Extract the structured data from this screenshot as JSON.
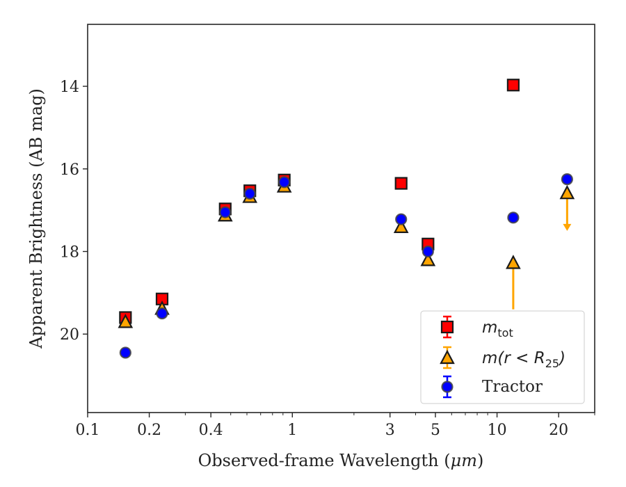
{
  "chart_data": {
    "type": "scatter",
    "xlabel_prefix": "Observed-frame Wavelength (",
    "xlabel_unit": "μm",
    "xlabel_suffix": ")",
    "ylabel": "Apparent Brightness (AB mag)",
    "xscale": "log",
    "xlim": [
      0.1,
      30
    ],
    "ylim": [
      21.9,
      12.5
    ],
    "y_inverted": true,
    "grid": false,
    "legend_position": "lower-right",
    "x_ticks": [
      {
        "value": 0.1,
        "label": "0.1"
      },
      {
        "value": 0.2,
        "label": "0.2"
      },
      {
        "value": 0.4,
        "label": "0.4"
      },
      {
        "value": 1,
        "label": "1"
      },
      {
        "value": 3,
        "label": "3"
      },
      {
        "value": 5,
        "label": "5"
      },
      {
        "value": 10,
        "label": "10"
      },
      {
        "value": 20,
        "label": "20"
      }
    ],
    "y_ticks": [
      {
        "value": 14,
        "label": "14"
      },
      {
        "value": 16,
        "label": "16"
      },
      {
        "value": 18,
        "label": "18"
      },
      {
        "value": 20,
        "label": "20"
      }
    ],
    "series": [
      {
        "name_base": "m",
        "name_sub": "tot",
        "name_tail": "",
        "marker": "square",
        "color": "#ff0000",
        "errcolor": "#ff0000",
        "points": [
          {
            "x": 0.153,
            "y": 19.6
          },
          {
            "x": 0.231,
            "y": 19.15
          },
          {
            "x": 0.47,
            "y": 16.97
          },
          {
            "x": 0.62,
            "y": 16.53
          },
          {
            "x": 0.913,
            "y": 16.27
          },
          {
            "x": 3.4,
            "y": 16.35
          },
          {
            "x": 4.6,
            "y": 17.82
          },
          {
            "x": 12.0,
            "y": 13.97
          }
        ]
      },
      {
        "name_base": "m",
        "name_sub": "25",
        "name_tail": "(r < R",
        "marker": "triangle",
        "color": "#ffa500",
        "errcolor": "#ffa500",
        "points": [
          {
            "x": 0.153,
            "y": 19.7
          },
          {
            "x": 0.231,
            "y": 19.38
          },
          {
            "x": 0.47,
            "y": 17.12
          },
          {
            "x": 0.62,
            "y": 16.67
          },
          {
            "x": 0.913,
            "y": 16.42
          },
          {
            "x": 3.4,
            "y": 17.4
          },
          {
            "x": 4.6,
            "y": 18.2
          },
          {
            "x": 12.0,
            "y": 18.27,
            "yerr_low": 19.4
          },
          {
            "x": 22.0,
            "y": 16.58,
            "upper_limit_to": 17.45
          }
        ]
      },
      {
        "name_base": "Tractor",
        "name_sub": "",
        "name_tail": "",
        "marker": "circle",
        "color": "#0000ff",
        "errcolor": "#0000ff",
        "points": [
          {
            "x": 0.153,
            "y": 20.45
          },
          {
            "x": 0.231,
            "y": 19.5
          },
          {
            "x": 0.47,
            "y": 17.05
          },
          {
            "x": 0.62,
            "y": 16.6
          },
          {
            "x": 0.913,
            "y": 16.32
          },
          {
            "x": 3.4,
            "y": 17.22
          },
          {
            "x": 4.6,
            "y": 18.0
          },
          {
            "x": 12.0,
            "y": 17.18
          },
          {
            "x": 22.0,
            "y": 16.25
          }
        ]
      }
    ]
  }
}
